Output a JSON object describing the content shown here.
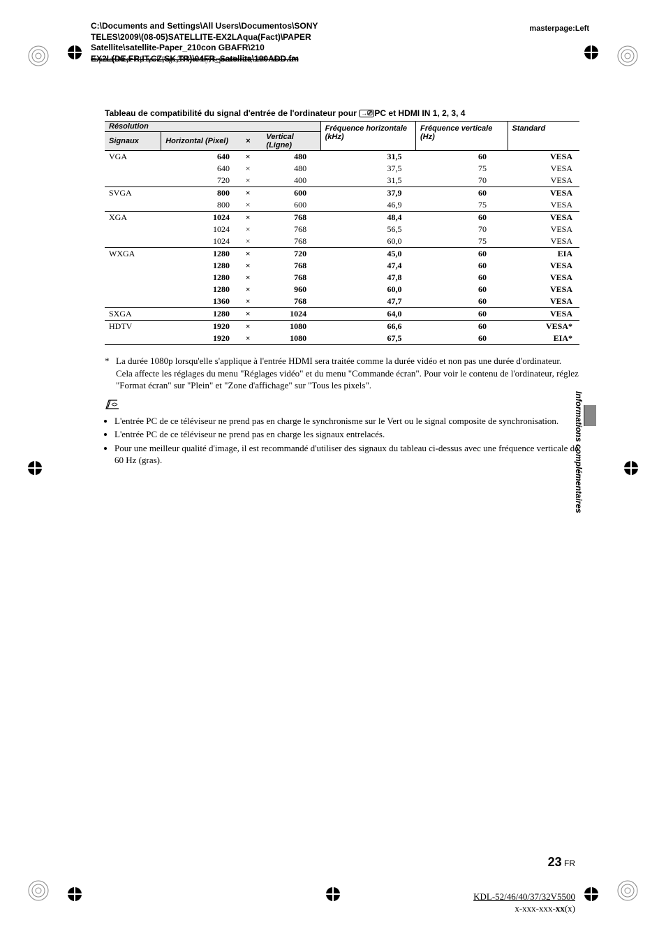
{
  "header": {
    "path_lines": [
      "C:\\Documents and Settings\\All Users\\Documentos\\SONY",
      "TELES\\2009\\(08-05)SATELLITE-EX2LAqua(Fact)\\PAPER",
      "Satellite\\satellite-Paper_210con GBAFR\\210",
      "EX2L(DE,FR,IT,CZ,SK,TR)\\04FR_Satellite\\100ADD.fm"
    ],
    "masterpage": "masterpage:Left",
    "strike": "Copia de 04 de GB.book  Page 23  Monday, September 28, 2009  10:03 AM"
  },
  "title": {
    "prefix": "Tableau de compatibilité du signal d'entrée de l'ordinateur pour ",
    "icon": "→",
    "suffix": "PC et HDMI IN 1, 2, 3, 4"
  },
  "table": {
    "resolution_label": "Résolution",
    "headers": {
      "signaux": "Signaux",
      "horizontal": "Horizontal (Pixel)",
      "x": "×",
      "vertical": "Vertical (Ligne)",
      "freq_h": "Fréquence horizontale (kHz)",
      "freq_v": "Fréquence verticale (Hz)",
      "standard": "Standard"
    },
    "rows": [
      {
        "sig": "VGA",
        "h": "640",
        "x": "×",
        "v": "480",
        "fh": "31,5",
        "fv": "60",
        "std": "VESA",
        "bold": true,
        "top": true
      },
      {
        "sig": "",
        "h": "640",
        "x": "×",
        "v": "480",
        "fh": "37,5",
        "fv": "75",
        "std": "VESA"
      },
      {
        "sig": "",
        "h": "720",
        "x": "×",
        "v": "400",
        "fh": "31,5",
        "fv": "70",
        "std": "VESA",
        "bot": true
      },
      {
        "sig": "SVGA",
        "h": "800",
        "x": "×",
        "v": "600",
        "fh": "37,9",
        "fv": "60",
        "std": "VESA",
        "bold": true
      },
      {
        "sig": "",
        "h": "800",
        "x": "×",
        "v": "600",
        "fh": "46,9",
        "fv": "75",
        "std": "VESA",
        "bot": true
      },
      {
        "sig": "XGA",
        "h": "1024",
        "x": "×",
        "v": "768",
        "fh": "48,4",
        "fv": "60",
        "std": "VESA",
        "bold": true
      },
      {
        "sig": "",
        "h": "1024",
        "x": "×",
        "v": "768",
        "fh": "56,5",
        "fv": "70",
        "std": "VESA"
      },
      {
        "sig": "",
        "h": "1024",
        "x": "×",
        "v": "768",
        "fh": "60,0",
        "fv": "75",
        "std": "VESA",
        "bot": true
      },
      {
        "sig": "WXGA",
        "h": "1280",
        "x": "×",
        "v": "720",
        "fh": "45,0",
        "fv": "60",
        "std": "EIA",
        "bold": true
      },
      {
        "sig": "",
        "h": "1280",
        "x": "×",
        "v": "768",
        "fh": "47,4",
        "fv": "60",
        "std": "VESA",
        "bold": true
      },
      {
        "sig": "",
        "h": "1280",
        "x": "×",
        "v": "768",
        "fh": "47,8",
        "fv": "60",
        "std": "VESA",
        "bold": true
      },
      {
        "sig": "",
        "h": "1280",
        "x": "×",
        "v": "960",
        "fh": "60,0",
        "fv": "60",
        "std": "VESA",
        "bold": true
      },
      {
        "sig": "",
        "h": "1360",
        "x": "×",
        "v": "768",
        "fh": "47,7",
        "fv": "60",
        "std": "VESA",
        "bold": true,
        "bot": true
      },
      {
        "sig": "SXGA",
        "h": "1280",
        "x": "×",
        "v": "1024",
        "fh": "64,0",
        "fv": "60",
        "std": "VESA",
        "bold": true,
        "bot": true
      },
      {
        "sig": "HDTV",
        "h": "1920",
        "x": "×",
        "v": "1080",
        "fh": "66,6",
        "fv": "60",
        "std": "VESA*",
        "bold": true
      },
      {
        "sig": "",
        "h": "1920",
        "x": "×",
        "v": "1080",
        "fh": "67,5",
        "fv": "60",
        "std": "EIA*",
        "bold": true,
        "botthick": true
      }
    ]
  },
  "footnote": {
    "marker": "*",
    "text": "La durée 1080p lorsqu'elle s'applique à l'entrée HDMI sera traitée comme la durée vidéo et non pas une durée d'ordinateur. Cela affecte les réglages du menu \"Réglages vidéo\" et du menu \"Commande écran\". Pour voir le contenu de l'ordinateur, réglez \"Format écran\" sur \"Plein\" et \"Zone d'affichage\" sur \"Tous les pixels\"."
  },
  "note_icon": "✎",
  "bullets": [
    "L'entrée PC de ce téléviseur ne prend pas en charge le synchronisme sur le Vert ou le signal composite de synchronisation.",
    "L'entrée PC de ce téléviseur ne prend pas en charge les signaux entrelacés.",
    "Pour une meilleur qualité d'image, il est recommandé d'utiliser des signaux du tableau ci-dessus avec une fréquence verticale de 60 Hz (gras)."
  ],
  "side_text": "Informations complémentaires",
  "page": {
    "num": "23",
    "suffix": " FR"
  },
  "footer": {
    "line1": "KDL-52/46/40/37/32V5500",
    "line2_prefix": "x-xxx-xxx-",
    "line2_bold": "xx",
    "line2_suffix": "(x)"
  }
}
